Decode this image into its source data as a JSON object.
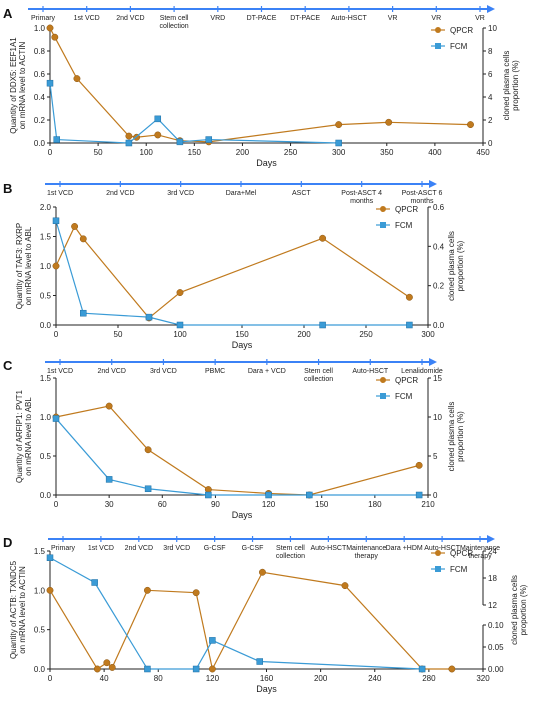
{
  "colors": {
    "qpcr": "#c07a1e",
    "fcm": "#3a9bd6",
    "timeline": "#3b82f6",
    "axis": "#222222"
  },
  "chart_data": [
    {
      "id": "A",
      "panel_label": "A",
      "type": "line",
      "xlabel": "Days",
      "ylabel_left": "Quantity of DDX5: EEF1A1 on mRNA level to ACTIN",
      "ylabel_right": "cloned plasma cells proportion (%)",
      "xlim": [
        0,
        450
      ],
      "ylim_left": [
        0,
        1.0
      ],
      "ylim_right": [
        0,
        10
      ],
      "x_ticks": [
        0,
        50,
        100,
        150,
        200,
        250,
        300,
        350,
        400,
        450
      ],
      "y_ticks_left": [
        "0.0",
        "0.2",
        "0.4",
        "0.6",
        "0.8",
        "1.0"
      ],
      "y_ticks_right": [
        "0",
        "2",
        "4",
        "6",
        "8",
        "10"
      ],
      "timeline": [
        "Primary",
        "1st VCD",
        "2nd VCD",
        "Stem cell collection",
        "VRD",
        "DT-PACE",
        "DT-PACE",
        "Auto-HSCT",
        "VR",
        "VR",
        "VR"
      ],
      "legend_position": "top-right",
      "series": [
        {
          "name": "QPCR",
          "axis": "left",
          "marker": "circle",
          "x": [
            0,
            5,
            28,
            82,
            90,
            112,
            135,
            165,
            300,
            352,
            437
          ],
          "y": [
            1.0,
            0.92,
            0.56,
            0.06,
            0.05,
            0.07,
            0.02,
            0.01,
            0.16,
            0.18,
            0.16
          ]
        },
        {
          "name": "FCM",
          "axis": "right",
          "marker": "square",
          "x": [
            0,
            7,
            82,
            112,
            135,
            165,
            300
          ],
          "y": [
            5.2,
            0.3,
            0.0,
            2.1,
            0.1,
            0.3,
            0.0
          ]
        }
      ]
    },
    {
      "id": "B",
      "panel_label": "B",
      "type": "line",
      "xlabel": "Days",
      "ylabel_left": "Quantity of TAF3: RXRP on mRNA level to ABL",
      "ylabel_right": "cloned plasma cells proportion (%)",
      "xlim": [
        0,
        300
      ],
      "ylim_left": [
        0,
        2.0
      ],
      "ylim_right": [
        0,
        0.6
      ],
      "x_ticks": [
        0,
        50,
        100,
        150,
        200,
        250,
        300
      ],
      "y_ticks_left": [
        "0.0",
        "0.5",
        "1.0",
        "1.5",
        "2.0"
      ],
      "y_ticks_right": [
        "0.0",
        "0.2",
        "0.4",
        "0.6"
      ],
      "timeline": [
        "1st VCD",
        "2nd VCD",
        "3rd VCD",
        "Dara+Mel",
        "ASCT",
        "Post-ASCT 4 months",
        "Post-ASCT 6 months"
      ],
      "legend_position": "top-right",
      "series": [
        {
          "name": "QPCR",
          "axis": "left",
          "marker": "circle",
          "x": [
            0,
            15,
            22,
            75,
            100,
            215,
            285
          ],
          "y": [
            1.0,
            1.67,
            1.46,
            0.12,
            0.55,
            1.47,
            0.47
          ]
        },
        {
          "name": "FCM",
          "axis": "right",
          "marker": "square",
          "x": [
            0,
            22,
            75,
            100,
            215,
            285
          ],
          "y": [
            0.53,
            0.06,
            0.04,
            0.0,
            0.0,
            0.0
          ]
        }
      ]
    },
    {
      "id": "C",
      "panel_label": "C",
      "type": "line",
      "xlabel": "Days",
      "ylabel_left": "Quantity of ARFIP1: PVT1 on mRNA level to ABL",
      "ylabel_right": "cloned plasma cells proportion (%)",
      "xlim": [
        0,
        210
      ],
      "ylim_left": [
        0,
        1.5
      ],
      "ylim_right": [
        0,
        15
      ],
      "x_ticks": [
        0,
        30,
        60,
        90,
        120,
        150,
        180,
        210
      ],
      "y_ticks_left": [
        "0.0",
        "0.5",
        "1.0",
        "1.5"
      ],
      "y_ticks_right": [
        "0",
        "5",
        "10",
        "15"
      ],
      "timeline": [
        "1st VCD",
        "2nd VCD",
        "3rd VCD",
        "PBMC",
        "Dara + VCD",
        "Stem cell collection",
        "Auto-HSCT",
        "Lenalidomide"
      ],
      "legend_position": "top-right",
      "series": [
        {
          "name": "QPCR",
          "axis": "left",
          "marker": "circle",
          "x": [
            0,
            30,
            52,
            86,
            120,
            143,
            205
          ],
          "y": [
            1.0,
            1.14,
            0.58,
            0.07,
            0.02,
            0.0,
            0.38
          ]
        },
        {
          "name": "FCM",
          "axis": "right",
          "marker": "square",
          "x": [
            0,
            30,
            52,
            86,
            120,
            143,
            205
          ],
          "y": [
            9.8,
            2.0,
            0.8,
            0.0,
            0.0,
            0.0,
            0.0
          ]
        }
      ]
    },
    {
      "id": "D",
      "panel_label": "D",
      "type": "line",
      "xlabel": "Days",
      "ylabel_left": "Quantity of ACTB: TXNDC5 on mRNA level to ACTIN",
      "ylabel_right": "cloned plasma cells proportion (%)",
      "xlim": [
        0,
        320
      ],
      "ylim_left": [
        0,
        1.5
      ],
      "right_axis_broken": true,
      "ylim_right_lower": [
        0,
        0.1
      ],
      "ylim_right_upper": [
        12,
        24
      ],
      "x_ticks": [
        0,
        40,
        80,
        120,
        160,
        200,
        240,
        280,
        320
      ],
      "y_ticks_left": [
        "0.0",
        "0.5",
        "1.0",
        "1.5"
      ],
      "y_ticks_right_lower": [
        "0.00",
        "0.05",
        "0.10"
      ],
      "y_ticks_right_upper": [
        "12",
        "18",
        "24"
      ],
      "timeline": [
        "Primary",
        "1st VCD",
        "2nd VCD",
        "3rd VCD",
        "G-CSF",
        "G-CSF",
        "Stem cell collection",
        "Auto-HSCT",
        "Maintenance therapy",
        "Dara +HDM",
        "Auto-HSCT",
        "Maintenance therapy"
      ],
      "legend_position": "top-right",
      "series": [
        {
          "name": "QPCR",
          "axis": "left",
          "marker": "circle",
          "x": [
            0,
            35,
            42,
            46,
            72,
            108,
            120,
            157,
            218,
            275,
            297
          ],
          "y": [
            1.0,
            0.0,
            0.08,
            0.02,
            1.0,
            0.97,
            0.0,
            1.23,
            1.06,
            0.0,
            0.0
          ]
        },
        {
          "name": "FCM",
          "axis": "right",
          "marker": "square",
          "x": [
            0,
            33,
            72,
            108,
            120,
            155,
            275
          ],
          "y": [
            22.5,
            17.0,
            0.0,
            0.0,
            0.065,
            0.017,
            0.0
          ]
        }
      ]
    }
  ]
}
